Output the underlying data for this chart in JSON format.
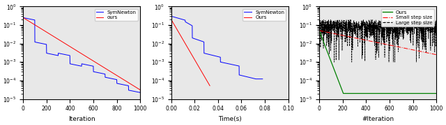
{
  "plot1": {
    "xlabel": "Iteration",
    "xlim": [
      0,
      1000
    ],
    "ylim_log": [
      1e-05,
      1.0
    ],
    "legend": [
      "SymNewton",
      "ours"
    ],
    "legend_colors": [
      "blue",
      "red"
    ]
  },
  "plot2": {
    "xlabel": "Time(s)",
    "xlim": [
      0,
      0.1
    ],
    "ylim_log": [
      1e-05,
      1.0
    ],
    "legend": [
      "SymNewton",
      "Ours"
    ],
    "legend_colors": [
      "blue",
      "red"
    ]
  },
  "plot3": {
    "xlabel": "#Iteration",
    "xlim": [
      0,
      1000
    ],
    "ylim_log": [
      1e-05,
      1.0
    ],
    "legend": [
      "Ours",
      "Small step size",
      "Large step size"
    ],
    "legend_colors": [
      "green",
      "red",
      "black"
    ]
  },
  "bg_color": "#e8e8e8"
}
